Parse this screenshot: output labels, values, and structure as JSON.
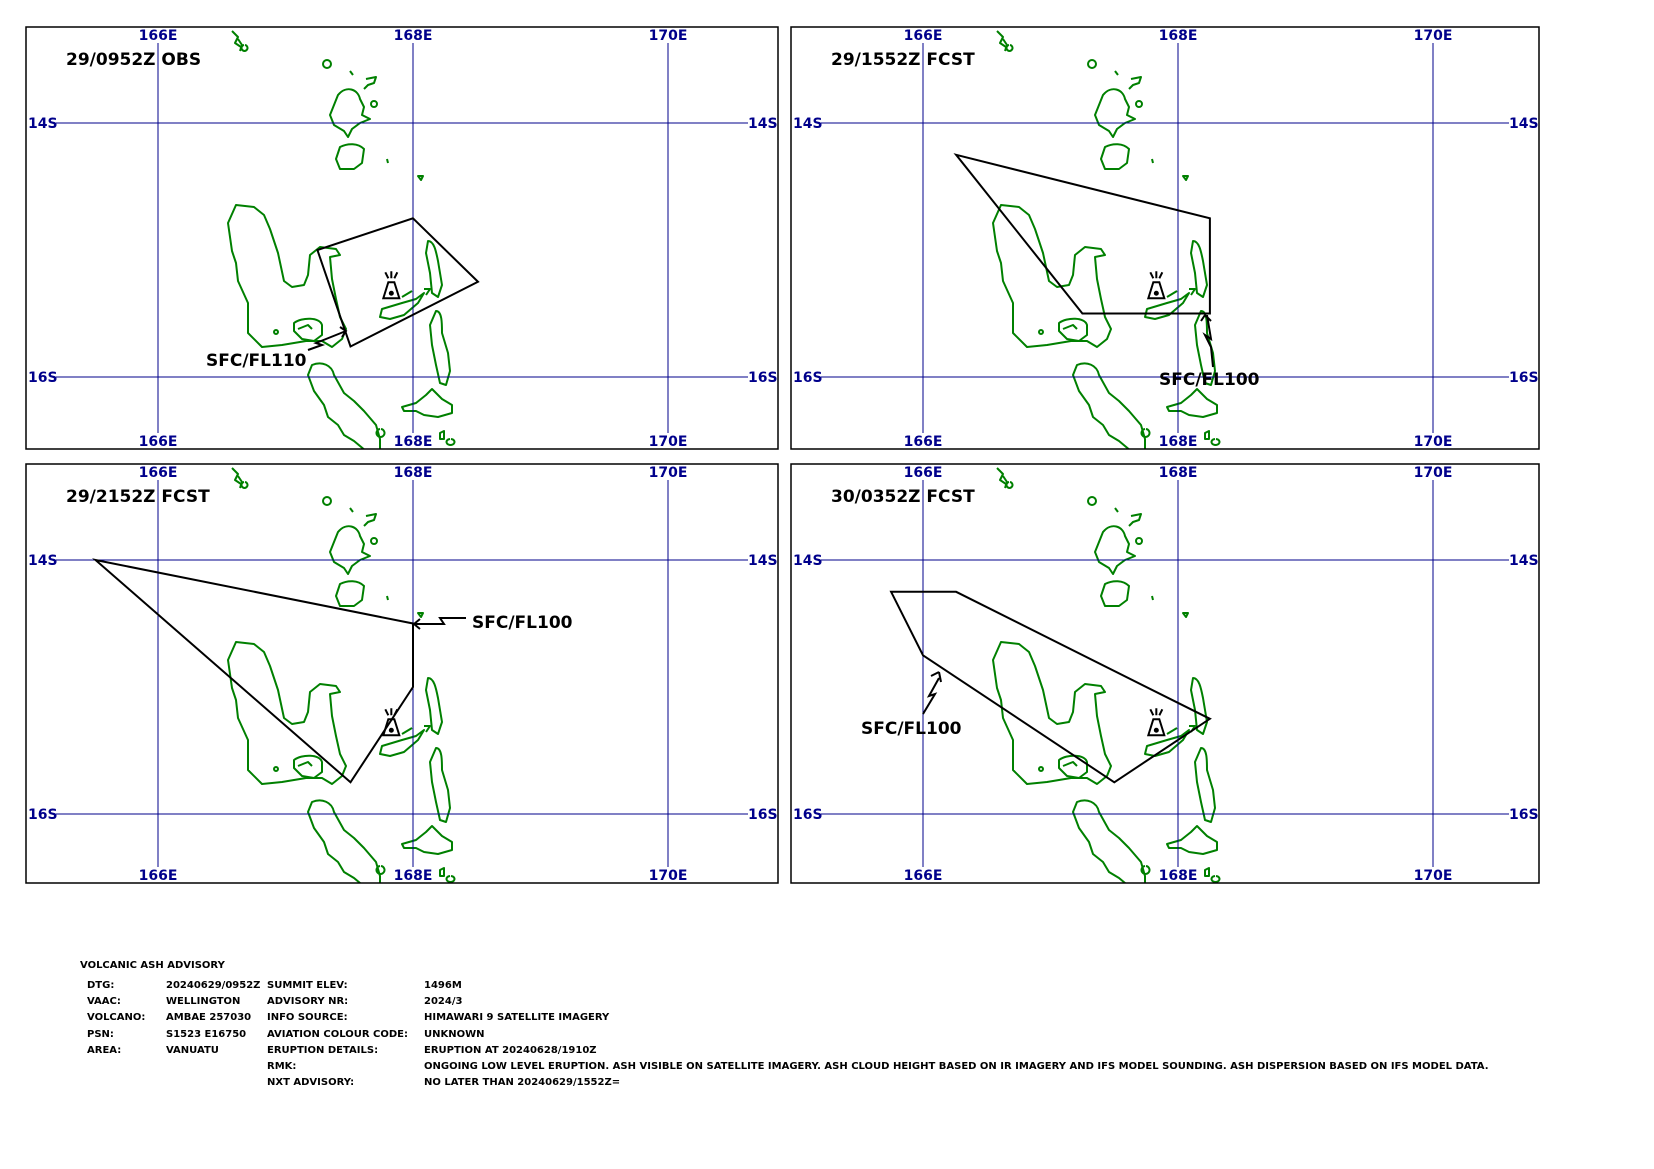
{
  "map": {
    "colors": {
      "coast": "#008000",
      "grid": "#00008b",
      "ash": "#000000"
    },
    "lon_ticks": [
      "166E",
      "168E",
      "170E"
    ],
    "lat_ticks": [
      "14S",
      "16S"
    ],
    "volcano": {
      "lon": 167.83,
      "lat_s": 15.38,
      "icon": "volcano-icon"
    },
    "panels": [
      {
        "title": "29/0952Z OBS",
        "level": "SFC/FL110",
        "polygon": [
          [
            168.0,
            14.75
          ],
          [
            168.51,
            15.25
          ],
          [
            167.51,
            15.76
          ],
          [
            167.25,
            15.0
          ]
        ]
      },
      {
        "title": "29/1552Z FCST",
        "level": "SFC/FL100",
        "polygon": [
          [
            166.26,
            14.25
          ],
          [
            168.25,
            14.75
          ],
          [
            168.25,
            15.5
          ],
          [
            167.25,
            15.5
          ]
        ]
      },
      {
        "title": "29/2152Z FCST",
        "level": "SFC/FL100",
        "polygon": [
          [
            165.51,
            14.0
          ],
          [
            168.0,
            14.5
          ],
          [
            168.0,
            15.0
          ],
          [
            167.51,
            15.75
          ]
        ]
      },
      {
        "title": "30/0352Z FCST",
        "level": "SFC/FL100",
        "polygon": [
          [
            165.75,
            14.25
          ],
          [
            166.26,
            14.25
          ],
          [
            168.25,
            15.25
          ],
          [
            167.5,
            15.75
          ],
          [
            166.0,
            14.75
          ]
        ]
      }
    ]
  },
  "advisory": {
    "heading": "VOLCANIC ASH ADVISORY",
    "left": [
      {
        "label": "DTG:",
        "value": "20240629/0952Z"
      },
      {
        "label": "VAAC:",
        "value": "WELLINGTON"
      },
      {
        "label": "VOLCANO:",
        "value": "AMBAE 257030"
      },
      {
        "label": "PSN:",
        "value": "S1523 E16750"
      },
      {
        "label": "AREA:",
        "value": "VANUATU"
      }
    ],
    "right": [
      {
        "label": "SUMMIT ELEV:",
        "value": "1496M"
      },
      {
        "label": "ADVISORY NR:",
        "value": "2024/3"
      },
      {
        "label": "INFO SOURCE:",
        "value": "HIMAWARI 9 SATELLITE IMAGERY"
      },
      {
        "label": "AVIATION COLOUR CODE:",
        "value": "UNKNOWN"
      },
      {
        "label": "ERUPTION DETAILS:",
        "value": "ERUPTION AT 20240628/1910Z"
      },
      {
        "label": "RMK:",
        "value": "ONGOING LOW LEVEL ERUPTION. ASH VISIBLE ON SATELLITE IMAGERY. ASH CLOUD HEIGHT BASED ON IR IMAGERY AND IFS MODEL SOUNDING. ASH DISPERSION BASED ON IFS MODEL DATA."
      },
      {
        "label": "NXT ADVISORY:",
        "value": "NO LATER THAN 20240629/1552Z="
      }
    ]
  }
}
